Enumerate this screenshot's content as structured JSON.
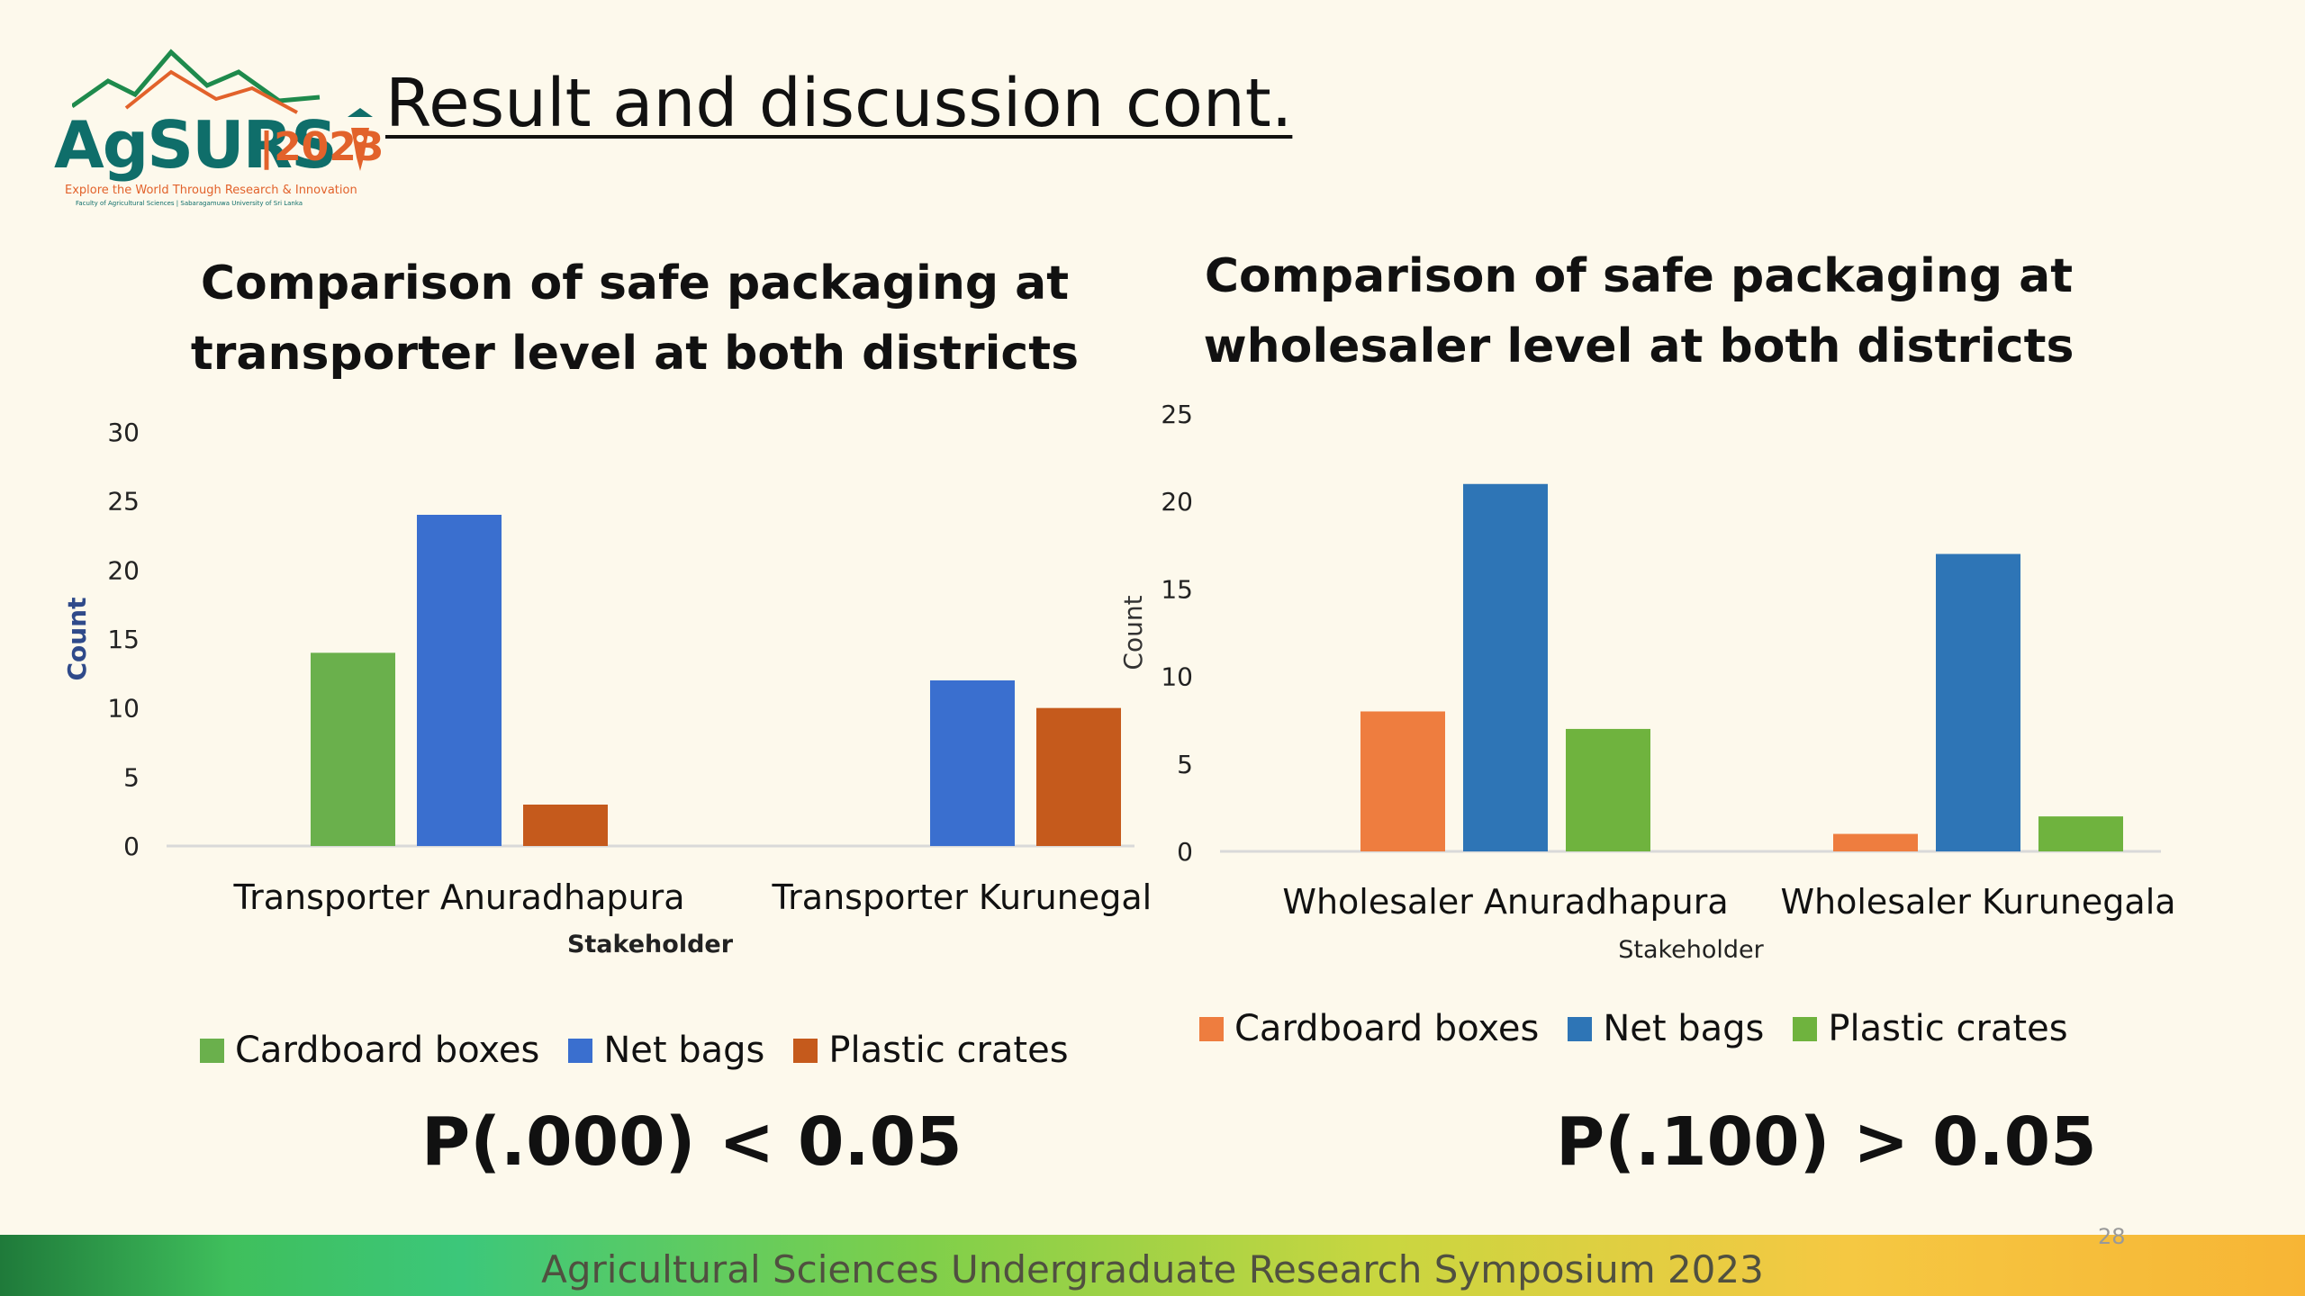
{
  "logo": {
    "word": "AgSURS",
    "year": "|2023",
    "tagline": "Explore the World Through Research & Innovation",
    "sub": "Faculty of Agricultural Sciences | Sabaragamuwa University of Sri Lanka"
  },
  "slide_title": "Result and discussion cont.",
  "colors": {
    "green": "#6ab04c",
    "blue": "#3a6fcf",
    "brown": "#c55a1c",
    "orange": "#ee7d3f",
    "blue2": "#2e75b6",
    "green2": "#6fb33e"
  },
  "chart_data": [
    {
      "type": "bar",
      "title": "Comparison of safe packaging at transporter level at both districts",
      "xlabel": "Stakeholder",
      "ylabel": "Count",
      "categories": [
        "Transporter Anuradhapura",
        "Transporter Kurunegala"
      ],
      "series": [
        {
          "name": "Cardboard boxes",
          "values": [
            14,
            0
          ],
          "color": "#6ab04c"
        },
        {
          "name": "Net bags",
          "values": [
            24,
            12
          ],
          "color": "#3a6fcf"
        },
        {
          "name": "Plastic crates",
          "values": [
            3,
            10
          ],
          "color": "#c55a1c"
        }
      ],
      "ylim": [
        0,
        30
      ],
      "yticks": [
        0,
        5,
        10,
        15,
        20,
        25,
        30
      ],
      "legend": "bottom",
      "grid": false
    },
    {
      "type": "bar",
      "title": "Comparison of safe packaging at wholesaler level at both districts",
      "xlabel": "Stakeholder",
      "ylabel": "Count",
      "categories": [
        "Wholesaler Anuradhapura",
        "Wholesaler Kurunegala"
      ],
      "series": [
        {
          "name": "Cardboard boxes",
          "values": [
            8,
            1
          ],
          "color": "#ee7d3f"
        },
        {
          "name": "Net bags",
          "values": [
            21,
            17
          ],
          "color": "#2e75b6"
        },
        {
          "name": "Plastic crates",
          "values": [
            7,
            2
          ],
          "color": "#6fb33e"
        }
      ],
      "ylim": [
        0,
        25
      ],
      "yticks": [
        0,
        5,
        10,
        15,
        20,
        25
      ],
      "legend": "bottom",
      "grid": false
    }
  ],
  "p_left": "P(.000) < 0.05",
  "p_right": "P(.100) > 0.05",
  "footer_text": "Agricultural Sciences Undergraduate Research Symposium 2023",
  "page_number": "28"
}
